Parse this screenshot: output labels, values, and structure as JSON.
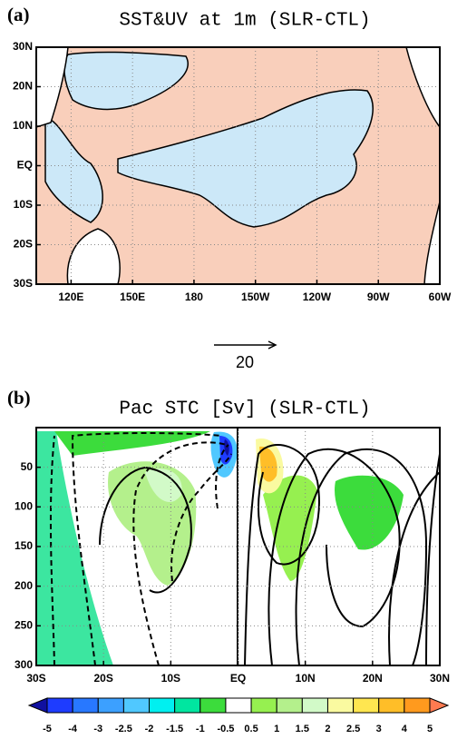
{
  "chart_data": [
    {
      "type": "map",
      "panel_label": "(a)",
      "title": "SST&UV at 1m (SLR-CTL)",
      "xlim": [
        103,
        300
      ],
      "xticks": [
        {
          "value": 120,
          "label": "120E"
        },
        {
          "value": 150,
          "label": "150E"
        },
        180,
        {
          "value": 210,
          "label": "150W"
        },
        {
          "value": 240,
          "label": "120W"
        },
        {
          "value": 270,
          "label": "90W"
        },
        {
          "value": 300,
          "label": "60W"
        }
      ],
      "ylim": [
        -30,
        30
      ],
      "yticks": [
        {
          "value": -30,
          "label": "30S"
        },
        {
          "value": -20,
          "label": "20S"
        },
        {
          "value": -10,
          "label": "10S"
        },
        {
          "value": 0,
          "label": "EQ"
        },
        {
          "value": 10,
          "label": "10N"
        },
        {
          "value": 20,
          "label": "20N"
        },
        {
          "value": 30,
          "label": "30N"
        }
      ],
      "grid": true,
      "reference_vector": 20
    },
    {
      "type": "contour",
      "panel_label": "(b)",
      "title": "Pac STC [Sv]   (SLR-CTL)",
      "xlim": [
        -30,
        30
      ],
      "xticks": [
        {
          "value": -30,
          "label": "30S"
        },
        {
          "value": -20,
          "label": "20S"
        },
        {
          "value": -10,
          "label": "10S"
        },
        {
          "value": 0,
          "label": "EQ"
        },
        {
          "value": 10,
          "label": "10N"
        },
        {
          "value": 20,
          "label": "20N"
        },
        {
          "value": 30,
          "label": "30N"
        }
      ],
      "ylim": [
        0,
        300
      ],
      "y_inverted": true,
      "yticks": [
        50,
        100,
        150,
        200,
        250,
        300
      ],
      "grid": true,
      "colorbar": {
        "levels": [
          -5,
          -4,
          -3,
          -2.5,
          -2,
          -1.5,
          -1,
          -0.5,
          0.5,
          1,
          1.5,
          2,
          2.5,
          3,
          4,
          5
        ],
        "colors": [
          "#1010a0",
          "#1e3cff",
          "#2878ff",
          "#3ca0ff",
          "#50c8ff",
          "#00f0f0",
          "#00e6a0",
          "#3cdc3c",
          "#ffffff",
          "#96f050",
          "#b4f08c",
          "#d2fac8",
          "#fafaa0",
          "#ffe650",
          "#ffbe28",
          "#ff9a1e",
          "#ff7a50"
        ]
      }
    }
  ]
}
